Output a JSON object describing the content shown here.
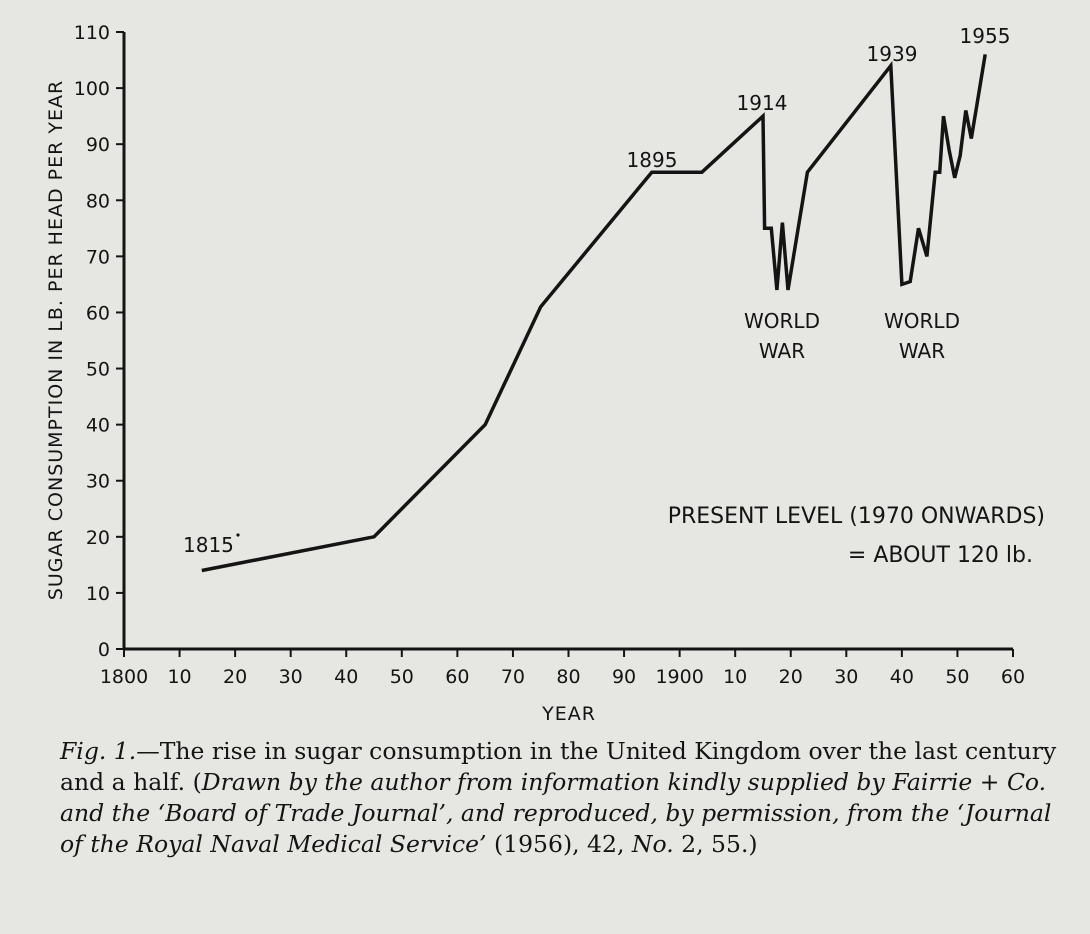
{
  "chart_data": {
    "type": "line",
    "xlabel": "YEAR",
    "ylabel": "SUGAR CONSUMPTION IN LB. PER HEAD PER YEAR",
    "xlim": [
      1800,
      1960
    ],
    "ylim": [
      0,
      110
    ],
    "x_ticks": [
      1800,
      1810,
      1820,
      1830,
      1840,
      1850,
      1860,
      1870,
      1880,
      1890,
      1900,
      1910,
      1920,
      1930,
      1940,
      1950,
      1960
    ],
    "x_tick_labels": [
      "1800",
      "10",
      "20",
      "30",
      "40",
      "50",
      "60",
      "70",
      "80",
      "90",
      "1900",
      "10",
      "20",
      "30",
      "40",
      "50",
      "60"
    ],
    "y_ticks": [
      0,
      10,
      20,
      30,
      40,
      50,
      60,
      70,
      80,
      90,
      100,
      110
    ],
    "y_tick_labels": [
      "0",
      "10",
      "20",
      "30",
      "40",
      "50",
      "60",
      "70",
      "80",
      "90",
      "100",
      "110"
    ],
    "grid": false,
    "series": [
      {
        "name": "Sugar consumption",
        "x": [
          1814,
          1845,
          1865,
          1875,
          1895,
          1904,
          1915,
          1915.3,
          1916.5,
          1917.5,
          1918.5,
          1919.5,
          1923,
          1938,
          1940,
          1941.5,
          1943,
          1944.5,
          1946,
          1946.8,
          1947.5,
          1948.5,
          1949.5,
          1950.5,
          1951.5,
          1952.5,
          1953.5,
          1955
        ],
        "y": [
          14,
          20,
          40,
          61,
          85,
          85,
          95,
          75,
          75,
          64,
          76,
          64,
          85,
          104,
          65,
          65.5,
          75,
          70,
          85,
          85,
          95,
          89,
          84,
          88,
          96,
          91,
          97,
          106
        ]
      }
    ],
    "annotations": [
      {
        "text": "1815",
        "x": 1815,
        "y": 14
      },
      {
        "text": "1895",
        "x": 1895,
        "y": 85
      },
      {
        "text": "1914",
        "x": 1914,
        "y": 95
      },
      {
        "text": "1939",
        "x": 1939,
        "y": 104
      },
      {
        "text": "1955",
        "x": 1955,
        "y": 106
      },
      {
        "text": "WORLD",
        "x": 1917,
        "y": 64
      },
      {
        "text": "WAR",
        "x": 1917,
        "y": 64
      },
      {
        "text": "WORLD",
        "x": 1941,
        "y": 65
      },
      {
        "text": "WAR",
        "x": 1941,
        "y": 65
      }
    ],
    "present_level": {
      "line1": "PRESENT LEVEL (1970 ONWARDS)",
      "line2": "= ABOUT 120 lb."
    }
  },
  "caption": {
    "fig_label": "Fig. 1.",
    "main": "—The rise in sugar consumption in the United Kingdom over the last century and a half. (",
    "italic_1": "Drawn by the author from information kindly supplied by Fairrie + Co. and the ‘Board of Trade Journal’, and reproduced, by permission, from the ‘Journal of the Royal Naval Medical Service’",
    "plain_2": " (1956), 42, ",
    "italic_2": "No.",
    "plain_3": " 2, 55.)"
  }
}
